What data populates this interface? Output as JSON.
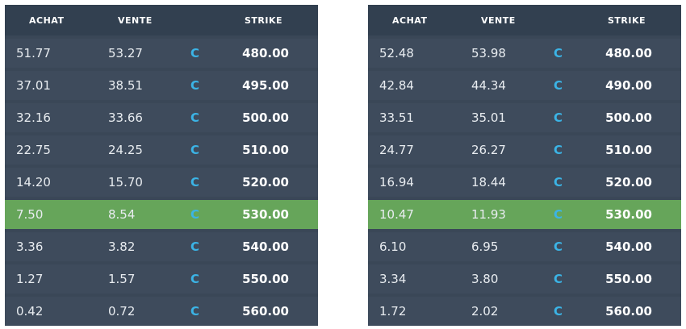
{
  "colors": {
    "panel_background": "#3a4757",
    "row_background": "#3e4b5c",
    "highlight_row": "#66a55a",
    "type_letter": "#3bb4e6"
  },
  "tables": [
    {
      "headers": {
        "achat": "ACHAT",
        "vente": "VENTE",
        "strike": "STRIKE"
      },
      "highlight_strike": "530.00",
      "rows": [
        {
          "achat": "51.77",
          "vente": "53.27",
          "type": "C",
          "strike": "480.00"
        },
        {
          "achat": "37.01",
          "vente": "38.51",
          "type": "C",
          "strike": "495.00"
        },
        {
          "achat": "32.16",
          "vente": "33.66",
          "type": "C",
          "strike": "500.00"
        },
        {
          "achat": "22.75",
          "vente": "24.25",
          "type": "C",
          "strike": "510.00"
        },
        {
          "achat": "14.20",
          "vente": "15.70",
          "type": "C",
          "strike": "520.00"
        },
        {
          "achat": "7.50",
          "vente": "8.54",
          "type": "C",
          "strike": "530.00"
        },
        {
          "achat": "3.36",
          "vente": "3.82",
          "type": "C",
          "strike": "540.00"
        },
        {
          "achat": "1.27",
          "vente": "1.57",
          "type": "C",
          "strike": "550.00"
        },
        {
          "achat": "0.42",
          "vente": "0.72",
          "type": "C",
          "strike": "560.00"
        }
      ]
    },
    {
      "headers": {
        "achat": "ACHAT",
        "vente": "VENTE",
        "strike": "STRIKE"
      },
      "highlight_strike": "530.00",
      "rows": [
        {
          "achat": "52.48",
          "vente": "53.98",
          "type": "C",
          "strike": "480.00"
        },
        {
          "achat": "42.84",
          "vente": "44.34",
          "type": "C",
          "strike": "490.00"
        },
        {
          "achat": "33.51",
          "vente": "35.01",
          "type": "C",
          "strike": "500.00"
        },
        {
          "achat": "24.77",
          "vente": "26.27",
          "type": "C",
          "strike": "510.00"
        },
        {
          "achat": "16.94",
          "vente": "18.44",
          "type": "C",
          "strike": "520.00"
        },
        {
          "achat": "10.47",
          "vente": "11.93",
          "type": "C",
          "strike": "530.00"
        },
        {
          "achat": "6.10",
          "vente": "6.95",
          "type": "C",
          "strike": "540.00"
        },
        {
          "achat": "3.34",
          "vente": "3.80",
          "type": "C",
          "strike": "550.00"
        },
        {
          "achat": "1.72",
          "vente": "2.02",
          "type": "C",
          "strike": "560.00"
        }
      ]
    }
  ]
}
